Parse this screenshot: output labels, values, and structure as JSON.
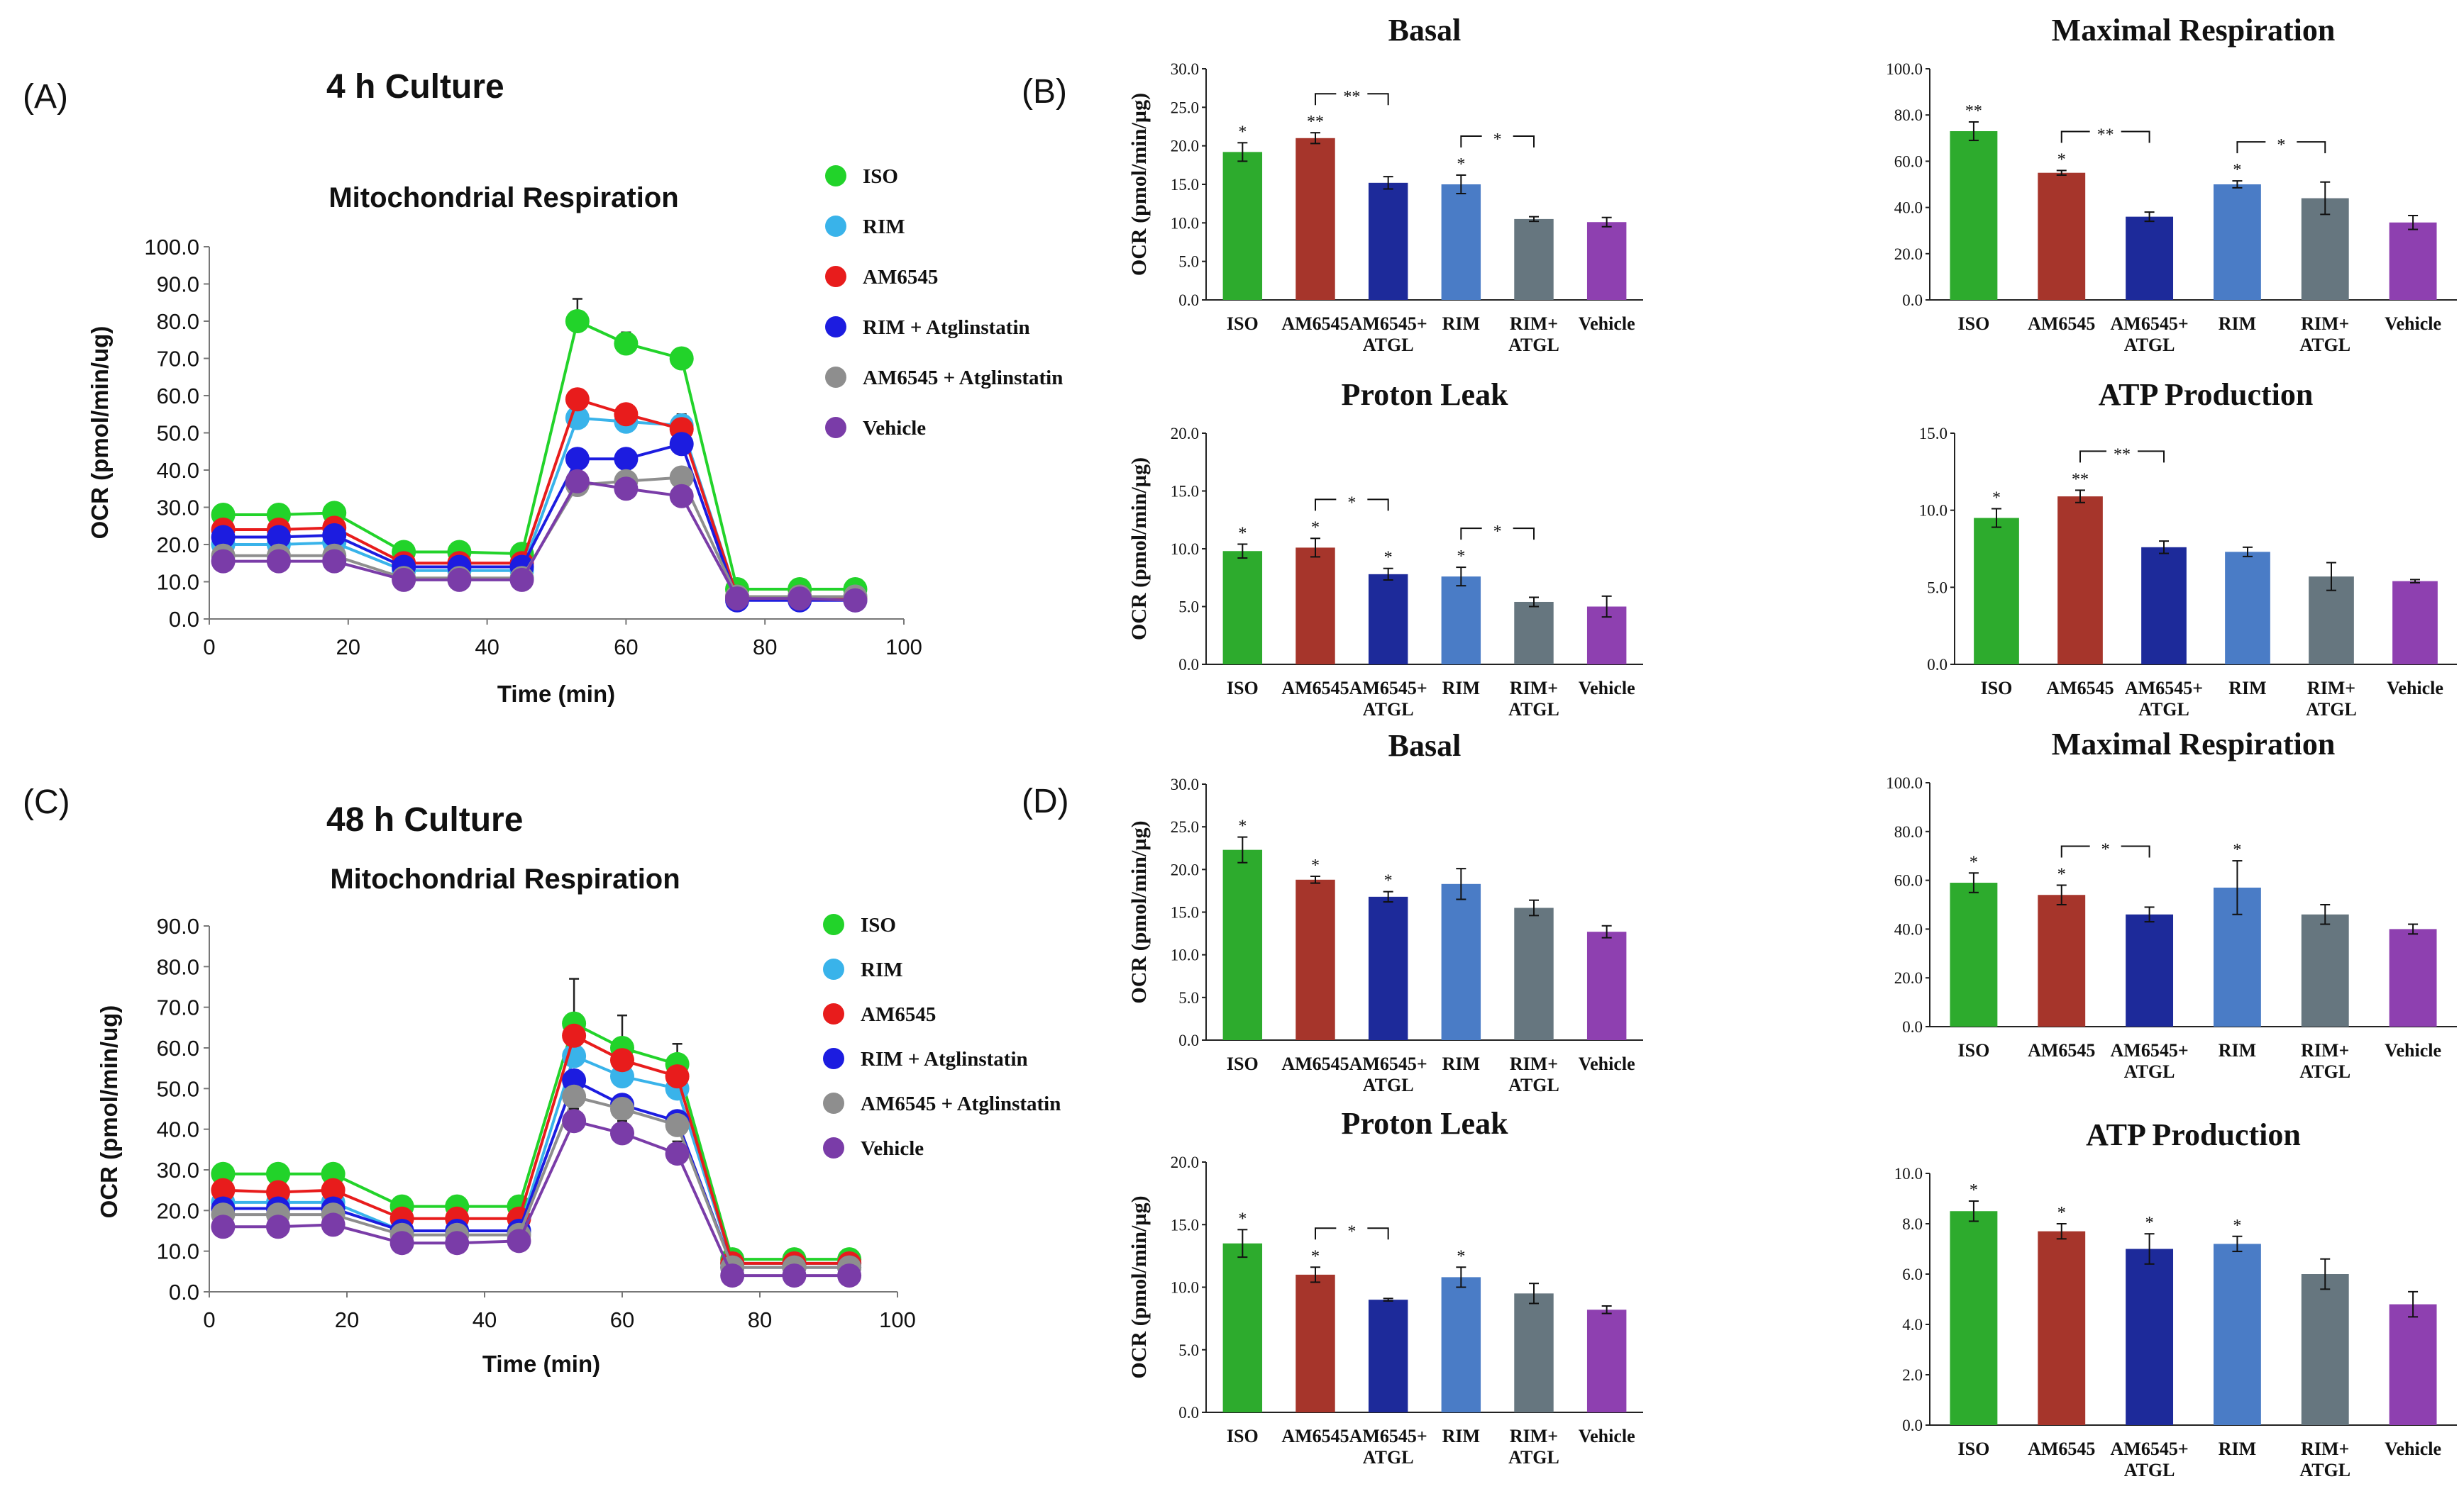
{
  "colors": {
    "ISO": "#22d32a",
    "RIM": "#39b3ea",
    "AM6545": "#e81c1c",
    "RIM + Atglinstatin": "#1c1ce0",
    "AM6545 + Atglinstatin": "#8e8e8e",
    "Vehicle": "#7a3ca8"
  },
  "bar_colors": {
    "ISO": "#2dab2d",
    "AM6545": "#a6352b",
    "AM6545+ ATGL": "#1d2a9a",
    "RIM": "#4a7cc6",
    "RIM+ ATGL": "#66767f",
    "Vehicle": "#8e40b0"
  },
  "chart_data": [
    {
      "id": "A",
      "panel_label": "(A)",
      "culture_title": "4 h Culture",
      "type": "line",
      "title": "Mitochondrial Respiration",
      "xlabel": "Time (min)",
      "ylabel": "OCR (pmol/min/ug)",
      "xlim": [
        0,
        100
      ],
      "ylim": [
        0,
        100
      ],
      "x_ticks": [
        0,
        20,
        40,
        60,
        80,
        100
      ],
      "y_ticks": [
        "0.0",
        "10.0",
        "20.0",
        "30.0",
        "40.0",
        "50.0",
        "60.0",
        "70.0",
        "80.0",
        "90.0",
        "100.0"
      ],
      "x": [
        2,
        10,
        18,
        28,
        36,
        45,
        53,
        60,
        68,
        76,
        85,
        93
      ],
      "series": [
        {
          "name": "ISO",
          "values": [
            28,
            28,
            28.5,
            18,
            18,
            17.5,
            80,
            74,
            70,
            8,
            8,
            8
          ],
          "err": [
            0,
            0,
            0,
            0,
            0,
            0,
            6,
            3,
            0,
            0,
            0,
            0
          ]
        },
        {
          "name": "RIM",
          "values": [
            20,
            20,
            20.5,
            13,
            13,
            13,
            54,
            53,
            52,
            6,
            6,
            6
          ],
          "err": [
            0,
            0,
            0,
            0,
            0,
            0,
            0,
            0,
            3,
            0,
            0,
            0
          ]
        },
        {
          "name": "AM6545",
          "values": [
            24,
            24,
            24.5,
            15,
            15,
            15,
            59,
            55,
            51,
            6,
            6,
            5.5
          ],
          "err": [
            0,
            0,
            0,
            0,
            0,
            0,
            0,
            0,
            0,
            0,
            0,
            0
          ]
        },
        {
          "name": "RIM + Atglinstatin",
          "values": [
            22,
            22,
            22.5,
            14,
            14,
            14,
            43,
            43,
            47,
            5,
            5,
            5
          ],
          "err": [
            0,
            0,
            0,
            0,
            0,
            0,
            0,
            0,
            0,
            0,
            0,
            0
          ]
        },
        {
          "name": "AM6545 + Atglinstatin",
          "values": [
            17,
            17,
            17,
            11,
            11,
            11,
            36,
            37,
            38,
            6,
            6,
            6
          ],
          "err": [
            0,
            0,
            0,
            0,
            0,
            0,
            0,
            0,
            0,
            0,
            0,
            0
          ]
        },
        {
          "name": "Vehicle",
          "values": [
            15.5,
            15.5,
            15.5,
            10.5,
            10.5,
            10.5,
            37,
            35,
            33,
            5.5,
            5.5,
            5
          ],
          "err": [
            0,
            0,
            0,
            0,
            0,
            0,
            0,
            0,
            0,
            0,
            0,
            0
          ]
        }
      ],
      "legend": [
        "ISO",
        "RIM",
        "AM6545",
        "RIM + Atglinstatin",
        "AM6545 + Atglinstatin",
        "Vehicle"
      ]
    },
    {
      "id": "C",
      "panel_label": "(C)",
      "culture_title": "48 h Culture",
      "type": "line",
      "title": "Mitochondrial Respiration",
      "xlabel": "Time (min)",
      "ylabel": "OCR (pmol/min/ug)",
      "xlim": [
        0,
        100
      ],
      "ylim": [
        0,
        90
      ],
      "x_ticks": [
        0,
        20,
        40,
        60,
        80,
        100
      ],
      "y_ticks": [
        "0.0",
        "10.0",
        "20.0",
        "30.0",
        "40.0",
        "50.0",
        "60.0",
        "70.0",
        "80.0",
        "90.0"
      ],
      "x": [
        2,
        10,
        18,
        28,
        36,
        45,
        53,
        60,
        68,
        76,
        85,
        93
      ],
      "series": [
        {
          "name": "ISO",
          "values": [
            29,
            29,
            29,
            21,
            21,
            21,
            66,
            60,
            56,
            8,
            8,
            8
          ],
          "err": [
            0,
            0,
            0,
            0,
            0,
            0,
            11,
            8,
            5,
            0,
            0,
            0
          ]
        },
        {
          "name": "RIM",
          "values": [
            22,
            22,
            22,
            15,
            15,
            15,
            58,
            53,
            50,
            7,
            7,
            7
          ],
          "err": [
            0,
            0,
            0,
            0,
            0,
            0,
            0,
            0,
            0,
            0,
            0,
            0
          ]
        },
        {
          "name": "AM6545",
          "values": [
            25,
            24.5,
            25,
            18,
            18,
            18,
            63,
            57,
            53,
            7,
            7,
            7
          ],
          "err": [
            0,
            0,
            0,
            0,
            0,
            0,
            0,
            0,
            0,
            0,
            0,
            0
          ]
        },
        {
          "name": "RIM + Atglinstatin",
          "values": [
            20.5,
            20.5,
            20.5,
            15,
            15,
            15,
            52,
            46,
            42,
            6,
            6,
            6
          ],
          "err": [
            0,
            0,
            0,
            0,
            0,
            0,
            0,
            0,
            0,
            0,
            0,
            0
          ]
        },
        {
          "name": "AM6545 + Atglinstatin",
          "values": [
            19,
            19,
            19,
            14,
            14,
            14,
            48,
            45,
            41,
            6,
            6,
            6
          ],
          "err": [
            0,
            0,
            0,
            0,
            0,
            0,
            0,
            0,
            0,
            0,
            0,
            0
          ]
        },
        {
          "name": "Vehicle",
          "values": [
            16,
            16,
            16.5,
            12,
            12,
            12.5,
            42,
            39,
            34,
            4,
            4,
            4
          ],
          "err": [
            0,
            0,
            0,
            0,
            0,
            0,
            3,
            3,
            3,
            0,
            0,
            0
          ]
        }
      ],
      "legend": [
        "ISO",
        "RIM",
        "AM6545",
        "RIM + Atglinstatin",
        "AM6545 + Atglinstatin",
        "Vehicle"
      ]
    },
    {
      "id": "B1",
      "panel_label": "(B)",
      "type": "bar",
      "title": "Basal",
      "ylabel": "OCR (pmol/min/µg)",
      "ylim": [
        0,
        30
      ],
      "y_ticks": [
        "0.0",
        "5.0",
        "10.0",
        "15.0",
        "20.0",
        "25.0",
        "30.0"
      ],
      "categories": [
        "ISO",
        "AM6545",
        "AM6545+ ATGL",
        "RIM",
        "RIM+ ATGL",
        "Vehicle"
      ],
      "cat_labels": [
        [
          "ISO"
        ],
        [
          "AM6545"
        ],
        [
          "AM6545+",
          "ATGL"
        ],
        [
          "RIM"
        ],
        [
          "RIM+",
          "ATGL"
        ],
        [
          "Vehicle"
        ]
      ],
      "values": [
        19.2,
        21,
        15.2,
        15,
        10.5,
        10.1
      ],
      "errors": [
        1.2,
        0.7,
        0.8,
        1.2,
        0.3,
        0.6
      ],
      "stars": [
        "*",
        "**",
        "",
        "*",
        "",
        ""
      ],
      "brackets": [
        {
          "from": 1,
          "to": 2,
          "label": "**"
        },
        {
          "from": 3,
          "to": 4,
          "label": "*"
        }
      ]
    },
    {
      "id": "B2",
      "panel_label": "",
      "type": "bar",
      "title": "Maximal Respiration",
      "ylabel": "",
      "ylim": [
        0,
        100
      ],
      "y_ticks": [
        "0.0",
        "20.0",
        "40.0",
        "60.0",
        "80.0",
        "100.0"
      ],
      "categories": [
        "ISO",
        "AM6545",
        "AM6545+ ATGL",
        "RIM",
        "RIM+ ATGL",
        "Vehicle"
      ],
      "cat_labels": [
        [
          "ISO"
        ],
        [
          "AM6545"
        ],
        [
          "AM6545+",
          "ATGL"
        ],
        [
          "RIM"
        ],
        [
          "RIM+",
          "ATGL"
        ],
        [
          "Vehicle"
        ]
      ],
      "values": [
        73,
        55,
        36,
        50,
        44,
        33.5
      ],
      "errors": [
        4,
        1,
        2,
        1.5,
        7,
        3
      ],
      "stars": [
        "**",
        "*",
        "",
        "*",
        "",
        ""
      ],
      "brackets": [
        {
          "from": 1,
          "to": 2,
          "label": "**"
        },
        {
          "from": 3,
          "to": 4,
          "label": "*"
        }
      ]
    },
    {
      "id": "B3",
      "panel_label": "",
      "type": "bar",
      "title": "Proton Leak",
      "ylabel": "OCR (pmol/min/µg)",
      "ylim": [
        0,
        20
      ],
      "y_ticks": [
        "0.0",
        "5.0",
        "10.0",
        "15.0",
        "20.0"
      ],
      "categories": [
        "ISO",
        "AM6545",
        "AM6545+ ATGL",
        "RIM",
        "RIM+ ATGL",
        "Vehicle"
      ],
      "cat_labels": [
        [
          "ISO"
        ],
        [
          "AM6545"
        ],
        [
          "AM6545+",
          "ATGL"
        ],
        [
          "RIM"
        ],
        [
          "RIM+",
          "ATGL"
        ],
        [
          "Vehicle"
        ]
      ],
      "values": [
        9.8,
        10.1,
        7.8,
        7.6,
        5.4,
        5
      ],
      "errors": [
        0.6,
        0.8,
        0.5,
        0.8,
        0.4,
        0.9
      ],
      "stars": [
        "*",
        "*",
        "*",
        "*",
        "",
        ""
      ],
      "brackets": [
        {
          "from": 1,
          "to": 2,
          "label": "*"
        },
        {
          "from": 3,
          "to": 4,
          "label": "*"
        }
      ]
    },
    {
      "id": "B4",
      "panel_label": "",
      "type": "bar",
      "title": "ATP Production",
      "ylabel": "",
      "ylim": [
        0,
        15
      ],
      "y_ticks": [
        "0.0",
        "5.0",
        "10.0",
        "15.0"
      ],
      "categories": [
        "ISO",
        "AM6545",
        "AM6545+ ATGL",
        "RIM",
        "RIM+ ATGL",
        "Vehicle"
      ],
      "cat_labels": [
        [
          "ISO"
        ],
        [
          "AM6545"
        ],
        [
          "AM6545+",
          "ATGL"
        ],
        [
          "RIM"
        ],
        [
          "RIM+",
          "ATGL"
        ],
        [
          "Vehicle"
        ]
      ],
      "values": [
        9.5,
        10.9,
        7.6,
        7.3,
        5.7,
        5.4
      ],
      "errors": [
        0.6,
        0.4,
        0.4,
        0.3,
        0.9,
        0.1
      ],
      "stars": [
        "*",
        "**",
        "",
        "",
        "",
        ""
      ],
      "brackets": [
        {
          "from": 1,
          "to": 2,
          "label": "**"
        }
      ]
    },
    {
      "id": "D1",
      "panel_label": "(D)",
      "type": "bar",
      "title": "Basal",
      "ylabel": "OCR (pmol/min/µg)",
      "ylim": [
        0,
        30
      ],
      "y_ticks": [
        "0.0",
        "5.0",
        "10.0",
        "15.0",
        "20.0",
        "25.0",
        "30.0"
      ],
      "categories": [
        "ISO",
        "AM6545",
        "AM6545+ ATGL",
        "RIM",
        "RIM+ ATGL",
        "Vehicle"
      ],
      "cat_labels": [
        [
          "ISO"
        ],
        [
          "AM6545"
        ],
        [
          "AM6545+",
          "ATGL"
        ],
        [
          "RIM"
        ],
        [
          "RIM+",
          "ATGL"
        ],
        [
          "Vehicle"
        ]
      ],
      "values": [
        22.3,
        18.8,
        16.8,
        18.3,
        15.5,
        12.7
      ],
      "errors": [
        1.5,
        0.4,
        0.6,
        1.8,
        0.9,
        0.7
      ],
      "stars": [
        "*",
        "*",
        "*",
        "",
        "",
        ""
      ],
      "brackets": []
    },
    {
      "id": "D2",
      "panel_label": "",
      "type": "bar",
      "title": "Maximal Respiration",
      "ylabel": "",
      "ylim": [
        0,
        100
      ],
      "y_ticks": [
        "0.0",
        "20.0",
        "40.0",
        "60.0",
        "80.0",
        "100.0"
      ],
      "categories": [
        "ISO",
        "AM6545",
        "AM6545+ ATGL",
        "RIM",
        "RIM+ ATGL",
        "Vehicle"
      ],
      "cat_labels": [
        [
          "ISO"
        ],
        [
          "AM6545"
        ],
        [
          "AM6545+",
          "ATGL"
        ],
        [
          "RIM"
        ],
        [
          "RIM+",
          "ATGL"
        ],
        [
          "Vehicle"
        ]
      ],
      "values": [
        59,
        54,
        46,
        57,
        46,
        40
      ],
      "errors": [
        4,
        4,
        3,
        11,
        4,
        2
      ],
      "stars": [
        "*",
        "*",
        "",
        "*",
        "",
        ""
      ],
      "brackets": [
        {
          "from": 1,
          "to": 2,
          "label": "*"
        }
      ]
    },
    {
      "id": "D3",
      "panel_label": "",
      "type": "bar",
      "title": "Proton Leak",
      "ylabel": "OCR (pmol/min/µg)",
      "ylim": [
        0,
        20
      ],
      "y_ticks": [
        "0.0",
        "5.0",
        "10.0",
        "15.0",
        "20.0"
      ],
      "categories": [
        "ISO",
        "AM6545",
        "AM6545+ ATGL",
        "RIM",
        "RIM+ ATGL",
        "Vehicle"
      ],
      "cat_labels": [
        [
          "ISO"
        ],
        [
          "AM6545"
        ],
        [
          "AM6545+",
          "ATGL"
        ],
        [
          "RIM"
        ],
        [
          "RIM+",
          "ATGL"
        ],
        [
          "Vehicle"
        ]
      ],
      "values": [
        13.5,
        11,
        9,
        10.8,
        9.5,
        8.2
      ],
      "errors": [
        1.1,
        0.6,
        0.1,
        0.8,
        0.8,
        0.3
      ],
      "stars": [
        "*",
        "*",
        "",
        "*",
        "",
        ""
      ],
      "brackets": [
        {
          "from": 1,
          "to": 2,
          "label": "*"
        }
      ]
    },
    {
      "id": "D4",
      "panel_label": "",
      "type": "bar",
      "title": "ATP Production",
      "ylabel": "",
      "ylim": [
        0,
        10
      ],
      "y_ticks": [
        "0.0",
        "2.0",
        "4.0",
        "6.0",
        "8.0",
        "10.0"
      ],
      "categories": [
        "ISO",
        "AM6545",
        "AM6545+ ATGL",
        "RIM",
        "RIM+ ATGL",
        "Vehicle"
      ],
      "cat_labels": [
        [
          "ISO"
        ],
        [
          "AM6545"
        ],
        [
          "AM6545+",
          "ATGL"
        ],
        [
          "RIM"
        ],
        [
          "RIM+",
          "ATGL"
        ],
        [
          "Vehicle"
        ]
      ],
      "values": [
        8.5,
        7.7,
        7,
        7.2,
        6,
        4.8
      ],
      "errors": [
        0.4,
        0.3,
        0.6,
        0.3,
        0.6,
        0.5
      ],
      "stars": [
        "*",
        "*",
        "*",
        "*",
        "",
        ""
      ],
      "brackets": []
    }
  ]
}
